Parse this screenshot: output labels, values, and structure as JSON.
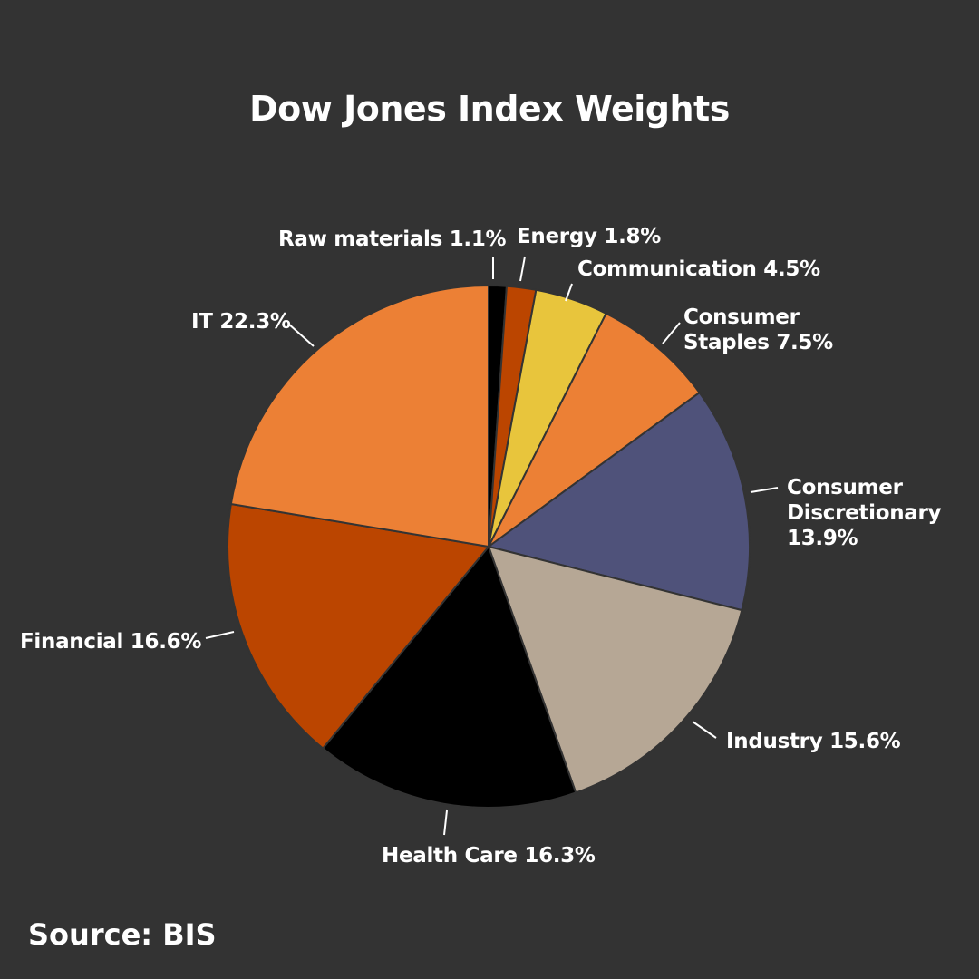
{
  "chart_data": {
    "type": "pie",
    "title": "Dow Jones Index Weights",
    "source": "Source: BIS",
    "start_angle_deg": 0,
    "direction": "clockwise",
    "slices": [
      {
        "name": "Raw materials",
        "value": 1.1,
        "color": "#000000",
        "label": "Raw materials 1.1%"
      },
      {
        "name": "Energy",
        "value": 1.8,
        "color": "#BB4500",
        "label": "Energy 1.8%"
      },
      {
        "name": "Communication",
        "value": 4.5,
        "color": "#E8C53C",
        "label": "Communication 4.5%"
      },
      {
        "name": "Consumer Staples",
        "value": 7.5,
        "color": "#EC8035",
        "label_lines": [
          "Consumer",
          "Staples 7.5%"
        ]
      },
      {
        "name": "Consumer Discretionary",
        "value": 13.9,
        "color": "#4F527A",
        "label_lines": [
          "Consumer",
          "Discretionary",
          "13.9%"
        ]
      },
      {
        "name": "Industry",
        "value": 15.6,
        "color": "#B6A795",
        "label": "Industry 15.6%"
      },
      {
        "name": "Health Care",
        "value": 16.3,
        "color": "#000000",
        "label": "Health Care 16.3%"
      },
      {
        "name": "Financial",
        "value": 16.6,
        "color": "#BB4500",
        "label": "Financial 16.6%"
      },
      {
        "name": "IT",
        "value": 22.3,
        "color": "#EC8035",
        "label": "IT 22.3%"
      }
    ],
    "legend": "none (direct labels with leader lines)"
  }
}
